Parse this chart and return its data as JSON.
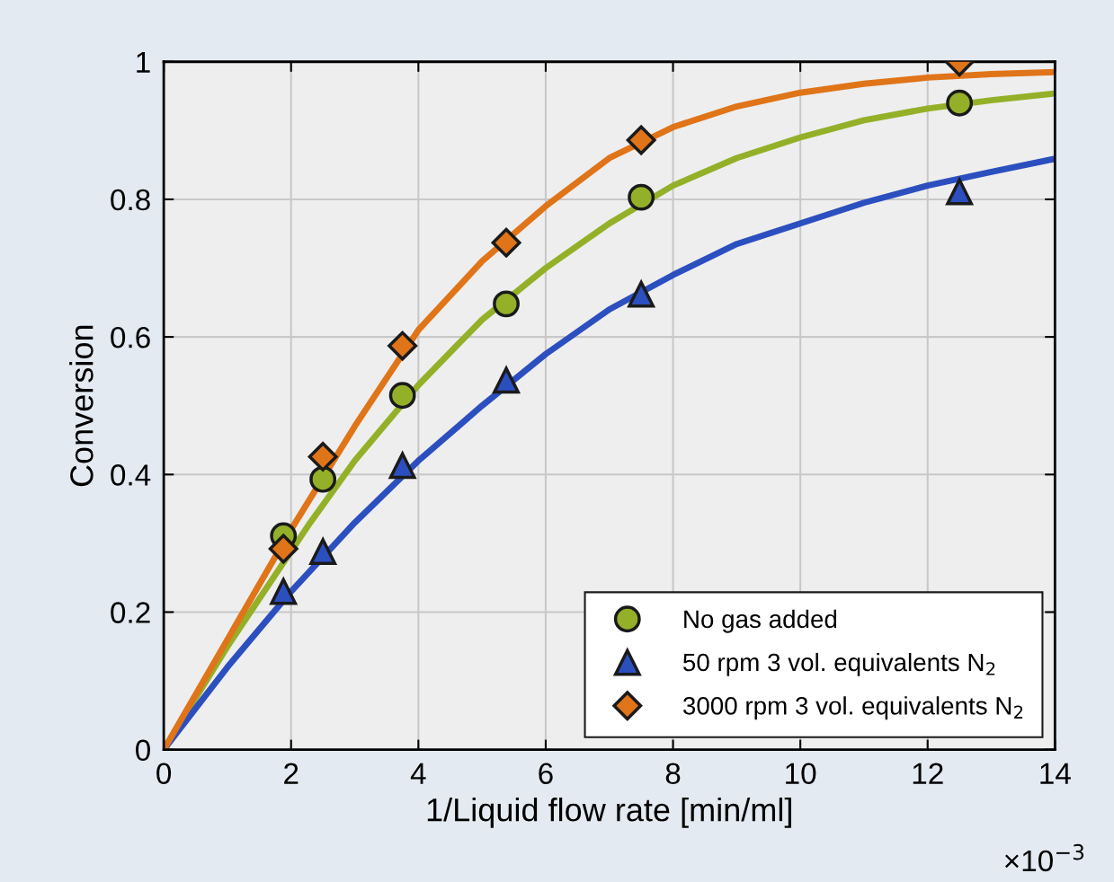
{
  "chart_data": {
    "type": "scatter",
    "xlabel": "1/Liquid flow rate [min/ml]",
    "ylabel": "Conversion",
    "annotations": [
      "×10$^{−3}$"
    ],
    "xlim": [
      0,
      14
    ],
    "xticks": [
      0,
      2,
      4,
      6,
      8,
      10,
      12,
      14
    ],
    "ylim": [
      0,
      1
    ],
    "yticks": [
      0,
      0.2,
      0.4,
      0.6,
      0.8,
      1
    ],
    "grid": true,
    "legend": "bottom right",
    "series": [
      {
        "type": "line",
        "marker": "none",
        "color": "#94b028",
        "x": [
          0,
          1,
          2.3,
          3,
          4,
          5,
          6,
          7,
          8,
          9,
          10,
          11,
          12,
          13,
          14
        ],
        "values": [
          0,
          0.15,
          0.33,
          0.42,
          0.53,
          0.625,
          0.7,
          0.765,
          0.82,
          0.86,
          0.89,
          0.915,
          0.932,
          0.944,
          0.954
        ]
      },
      {
        "type": "line",
        "marker": "none",
        "color": "#2c4fc0",
        "x": [
          0,
          1,
          2,
          3,
          4,
          5,
          6,
          7,
          8,
          9,
          10,
          11,
          12,
          13,
          14
        ],
        "values": [
          0,
          0.12,
          0.23,
          0.33,
          0.42,
          0.5,
          0.575,
          0.64,
          0.69,
          0.735,
          0.765,
          0.795,
          0.82,
          0.84,
          0.859
        ]
      },
      {
        "type": "line",
        "marker": "none",
        "color": "#e07418",
        "x": [
          0,
          1,
          2,
          3,
          4,
          5,
          6,
          7,
          8,
          9,
          10,
          11,
          12,
          13,
          14
        ],
        "values": [
          0,
          0.16,
          0.32,
          0.47,
          0.61,
          0.71,
          0.79,
          0.86,
          0.905,
          0.935,
          0.955,
          0.968,
          0.977,
          0.982,
          0.985
        ]
      },
      {
        "name": "No gas added",
        "marker": "circle",
        "color": "#94b028",
        "x": [
          1.88,
          2.5,
          3.75,
          5.38,
          7.5,
          12.5
        ],
        "values": [
          0.311,
          0.393,
          0.515,
          0.648,
          0.803,
          0.94
        ]
      },
      {
        "name": "50 rpm 3 vol. equivalents N$_{2}$",
        "marker": "triangle",
        "color": "#2c4fc0",
        "x": [
          1.88,
          2.5,
          3.75,
          5.38,
          7.5,
          12.5
        ],
        "values": [
          0.23,
          0.288,
          0.413,
          0.537,
          0.662,
          0.811
        ]
      },
      {
        "name": "3000 rpm 3 vol. equivalents N$_{2}$",
        "marker": "diamond",
        "color": "#e07418",
        "x": [
          1.88,
          2.5,
          3.75,
          5.38,
          7.5,
          12.5
        ],
        "values": [
          0.292,
          0.426,
          0.587,
          0.737,
          0.886,
          1.0
        ]
      }
    ]
  }
}
